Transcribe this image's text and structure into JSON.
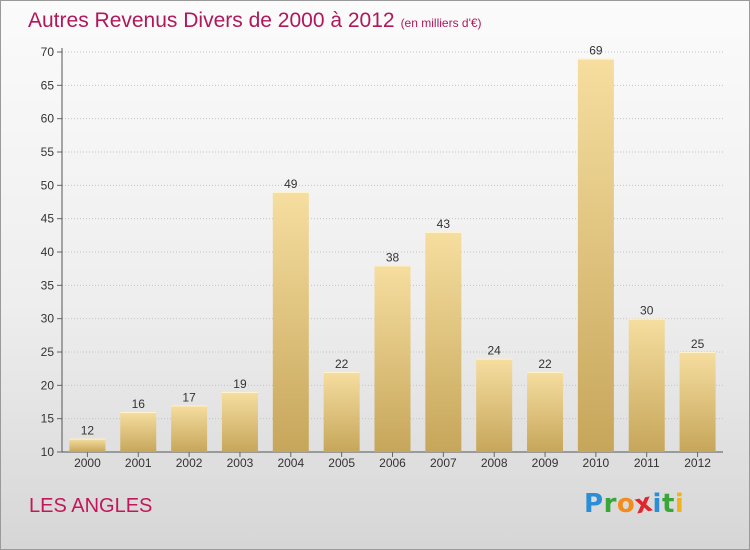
{
  "chart_data": {
    "type": "bar",
    "title": "Autres Revenus Divers de 2000 à 2012",
    "subtitle": "(en milliers d'€)",
    "categories": [
      "2000",
      "2001",
      "2002",
      "2003",
      "2004",
      "2005",
      "2006",
      "2007",
      "2008",
      "2009",
      "2010",
      "2011",
      "2012"
    ],
    "values": [
      12,
      16,
      17,
      19,
      49,
      22,
      38,
      43,
      24,
      22,
      69,
      30,
      25
    ],
    "ylim": [
      10,
      70
    ],
    "yticks": [
      10,
      15,
      20,
      25,
      30,
      35,
      40,
      45,
      50,
      55,
      60,
      65,
      70
    ],
    "grid": true,
    "data_labels": true
  },
  "place": "LES ANGLES",
  "brand": {
    "letters": [
      "P",
      "r",
      "o",
      "x",
      "i",
      "t",
      "i"
    ],
    "colors": [
      "#2a8fd6",
      "#3aa63a",
      "#f28c1c",
      "#e0262c",
      "#2a8fd6",
      "#3aa63a",
      "#f2b21c"
    ]
  },
  "colors": {
    "title": "#b0185a",
    "bar_light": "#f5dc9c",
    "bar_dark": "#c9a95c",
    "grid": "#c4c4c4",
    "axis_text": "#333333"
  }
}
